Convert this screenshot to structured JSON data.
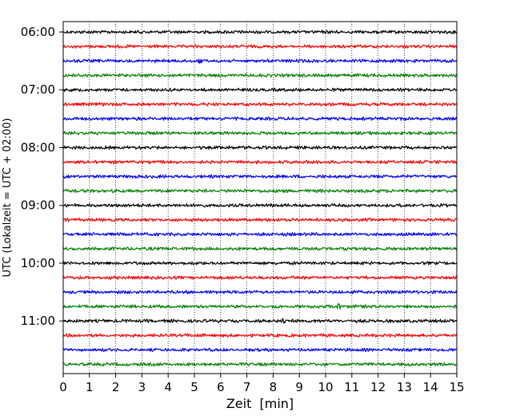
{
  "chart_data": {
    "type": "line",
    "subtype": "helicorder",
    "title": "",
    "xlabel": "Zeit  [min]",
    "ylabel": "UTC (Lokalzeit = UTC + 02:00)",
    "xlim": [
      0,
      15
    ],
    "x_ticks": [
      0,
      1,
      2,
      3,
      4,
      5,
      6,
      7,
      8,
      9,
      10,
      11,
      12,
      13,
      14,
      15
    ],
    "x_grid": "dotted vertical at each minute",
    "y_tick_labels": [
      "06:00",
      "07:00",
      "08:00",
      "09:00",
      "10:00",
      "11:00"
    ],
    "traces_per_hour": 4,
    "trace_minutes": 15,
    "trace_colors": [
      "#000000",
      "#ff0000",
      "#0000ff",
      "#007f00"
    ],
    "trace_start_times": [
      "06:00",
      "06:15",
      "06:30",
      "06:45",
      "07:00",
      "07:15",
      "07:30",
      "07:45",
      "08:00",
      "08:15",
      "08:30",
      "08:45",
      "09:00",
      "09:15",
      "09:30",
      "09:45",
      "10:00",
      "10:15",
      "10:30",
      "10:45",
      "11:00",
      "11:15",
      "11:30",
      "11:45"
    ],
    "notable_events": [
      {
        "trace_start": "06:30",
        "minute": 5.2
      },
      {
        "trace_start": "10:45",
        "minute": 10.5
      },
      {
        "trace_start": "11:00",
        "minute": 8.4
      }
    ]
  }
}
